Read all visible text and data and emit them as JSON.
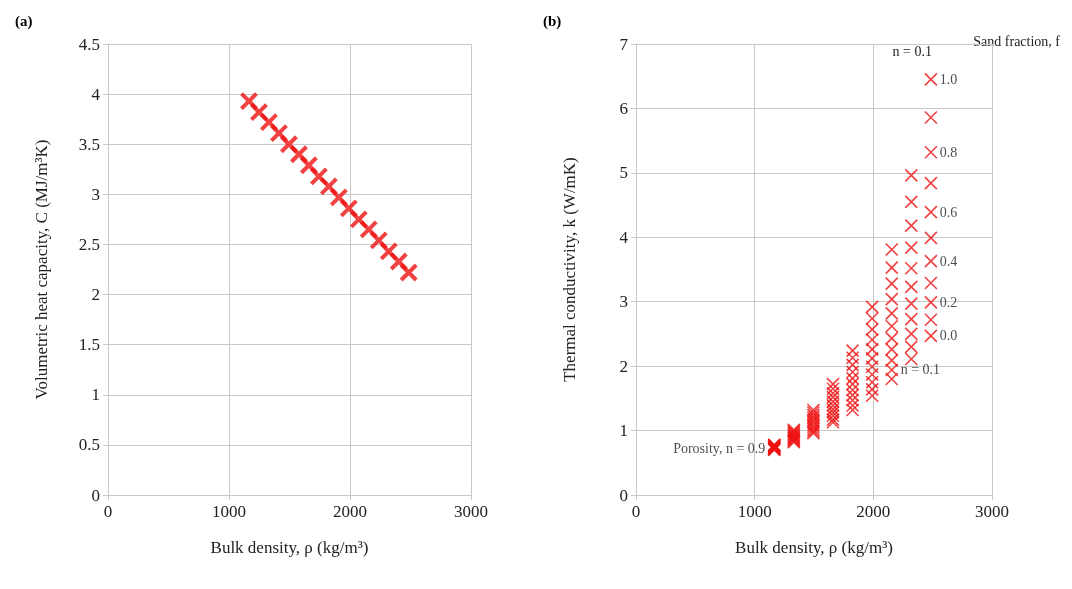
{
  "chart_data": [
    {
      "type": "scatter",
      "title": "(a)",
      "xlabel": "Bulk density, ρ (kg/m³)",
      "ylabel": "Volumetric heat capacity, C (MJ/m³K)",
      "xlim": [
        0,
        3000
      ],
      "xticks": [
        0,
        1000,
        2000,
        3000
      ],
      "ylim": [
        0,
        4.5
      ],
      "yticks": [
        0,
        0.5,
        1,
        1.5,
        2,
        2.5,
        3,
        3.5,
        4,
        4.5
      ],
      "grid": true,
      "marker": "cross",
      "series": [
        {
          "color": "#ee1111",
          "x": [
            1165,
            1248,
            1330,
            1413,
            1495,
            1578,
            1660,
            1743,
            1825,
            1908,
            1990,
            2073,
            2155,
            2238,
            2320,
            2403,
            2485
          ],
          "values": [
            3.93,
            3.82,
            3.72,
            3.61,
            3.5,
            3.4,
            3.29,
            3.18,
            3.08,
            2.97,
            2.86,
            2.75,
            2.65,
            2.54,
            2.43,
            2.33,
            2.22
          ]
        }
      ]
    },
    {
      "type": "scatter",
      "title": "(b)",
      "xlabel": "Bulk density, ρ (kg/m³)",
      "ylabel": "Thermal conductivity, k (W/mK)",
      "xlim": [
        0,
        3000
      ],
      "xticks": [
        0,
        1000,
        2000,
        3000
      ],
      "ylim": [
        0,
        7
      ],
      "yticks": [
        0,
        1,
        2,
        3,
        4,
        5,
        6,
        7
      ],
      "grid": true,
      "marker": "cross",
      "series": [
        {
          "color": "#ee1111",
          "x": [
            1165,
            1165,
            1165,
            1165,
            1165,
            1165,
            1165,
            1165,
            1165,
            1165,
            1165,
            1330,
            1330,
            1330,
            1330,
            1330,
            1330,
            1330,
            1330,
            1330,
            1330,
            1330,
            1495,
            1495,
            1495,
            1495,
            1495,
            1495,
            1495,
            1495,
            1495,
            1495,
            1495,
            1660,
            1660,
            1660,
            1660,
            1660,
            1660,
            1660,
            1660,
            1660,
            1660,
            1660,
            1825,
            1825,
            1825,
            1825,
            1825,
            1825,
            1825,
            1825,
            1825,
            1825,
            1825,
            1990,
            1990,
            1990,
            1990,
            1990,
            1990,
            1990,
            1990,
            1990,
            1990,
            1990,
            2155,
            2155,
            2155,
            2155,
            2155,
            2155,
            2155,
            2155,
            2155,
            2155,
            2155,
            2320,
            2320,
            2320,
            2320,
            2320,
            2320,
            2320,
            2320,
            2320,
            2320,
            2320,
            2485,
            2485,
            2485,
            2485,
            2485,
            2485,
            2485,
            2485,
            2485,
            2485,
            2485
          ],
          "values": [
            0.7,
            0.71,
            0.72,
            0.72,
            0.73,
            0.74,
            0.75,
            0.76,
            0.77,
            0.77,
            0.78,
            0.82,
            0.84,
            0.86,
            0.88,
            0.89,
            0.91,
            0.93,
            0.95,
            0.97,
            0.99,
            1.01,
            0.96,
            0.99,
            1.02,
            1.06,
            1.09,
            1.13,
            1.16,
            1.2,
            1.24,
            1.28,
            1.32,
            1.13,
            1.17,
            1.23,
            1.28,
            1.33,
            1.39,
            1.45,
            1.52,
            1.58,
            1.65,
            1.72,
            1.32,
            1.39,
            1.47,
            1.55,
            1.63,
            1.72,
            1.81,
            1.91,
            2.02,
            2.13,
            2.24,
            1.54,
            1.64,
            1.75,
            1.87,
            1.99,
            2.12,
            2.26,
            2.41,
            2.57,
            2.74,
            2.92,
            1.8,
            1.94,
            2.09,
            2.26,
            2.43,
            2.62,
            2.82,
            3.04,
            3.28,
            3.53,
            3.81,
            2.11,
            2.3,
            2.5,
            2.73,
            2.97,
            3.23,
            3.52,
            3.84,
            4.18,
            4.55,
            4.96,
            2.47,
            2.72,
            2.99,
            3.29,
            3.63,
            3.99,
            4.39,
            4.84,
            5.32,
            5.86,
            6.45
          ]
        }
      ],
      "annotations": [
        "Sand fraction, f",
        "n = 0.1",
        {
          "text": "1.0",
          "x": 2560,
          "y": 6.45
        },
        {
          "text": "0.8",
          "x": 2560,
          "y": 5.32
        },
        {
          "text": "0.6",
          "x": 2560,
          "y": 4.39
        },
        {
          "text": "0.4",
          "x": 2560,
          "y": 3.63
        },
        {
          "text": "0.2",
          "x": 2560,
          "y": 2.99
        },
        {
          "text": "0.0",
          "x": 2560,
          "y": 2.47
        },
        {
          "text": "n = 0.1",
          "x": 2230,
          "y": 1.95
        },
        {
          "text": "Porosity, n = 0.9",
          "x": 1090,
          "y": 0.72
        }
      ]
    }
  ]
}
